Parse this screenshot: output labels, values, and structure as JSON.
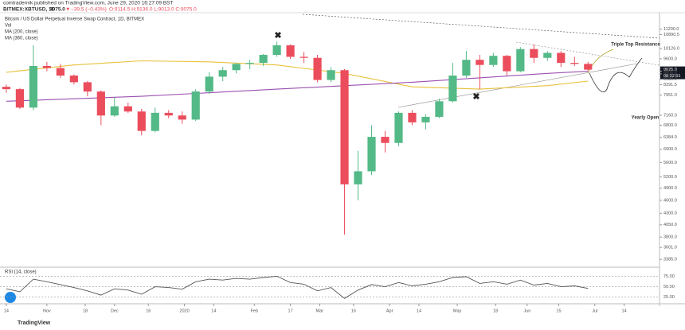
{
  "header": {
    "publisher": "cointradernik published on TradingView.com, June 29, 2020 16:27:09 BST",
    "symbol": "BITMEX:XBTUSD, 1D",
    "last": "9075.0",
    "arrow": "▼",
    "change": "−39.5 (−0.43%)",
    "ohlc": "O:9114.5 H:9136.0 L:9013.0 C:9075.0"
  },
  "legend": {
    "instrument": "Bitcoin / US Dollar Perpetual Inverse Swap Contract, 1D, BITMEX",
    "volume": "Vol"
  },
  "footer": "TradingView",
  "chart_data": {
    "type": "candlestick",
    "x": [
      0,
      6,
      12,
      18,
      24,
      30,
      36,
      42,
      48,
      54,
      60,
      66,
      72,
      78,
      84,
      90,
      96,
      102,
      108,
      114,
      120,
      126,
      132,
      138,
      144,
      150,
      156,
      162,
      168,
      174,
      180,
      186,
      192,
      198,
      204,
      210,
      216,
      222,
      228,
      234,
      240,
      246,
      252,
      258
    ],
    "open": [
      8300,
      8200,
      7450,
      9250,
      9150,
      8800,
      8500,
      8100,
      7150,
      7500,
      7300,
      6600,
      7250,
      7150,
      7000,
      8100,
      8750,
      9050,
      9350,
      9400,
      9800,
      10300,
      9700,
      9650,
      8600,
      9050,
      5000,
      5350,
      6400,
      6200,
      7250,
      6900,
      7100,
      7700,
      8800,
      9550,
      9300,
      9750,
      9000,
      10100,
      9650,
      9900,
      9400,
      9350
    ],
    "high": [
      8400,
      8250,
      10300,
      9450,
      9350,
      8850,
      8550,
      8150,
      7850,
      7650,
      7400,
      7450,
      7350,
      7300,
      8200,
      8950,
      9200,
      9400,
      9550,
      9850,
      10500,
      10350,
      9950,
      9800,
      9200,
      9100,
      5950,
      6800,
      6600,
      7300,
      7350,
      7200,
      7800,
      9400,
      10000,
      9800,
      9900,
      9800,
      10200,
      10350,
      10000,
      10000,
      9700,
      9450
    ],
    "low": [
      8050,
      7400,
      7350,
      9000,
      8700,
      8400,
      7900,
      6800,
      7100,
      7250,
      6450,
      6550,
      7050,
      6850,
      6950,
      8000,
      8550,
      8900,
      9100,
      9250,
      9700,
      9600,
      9400,
      8500,
      8500,
      3850,
      4600,
      5250,
      5900,
      6100,
      6800,
      6650,
      7050,
      7650,
      8700,
      8200,
      9200,
      8800,
      8950,
      9400,
      9500,
      9200,
      9250,
      9000
    ],
    "close": [
      8200,
      7450,
      9250,
      9150,
      8800,
      8500,
      8100,
      7150,
      7500,
      7300,
      6600,
      7250,
      7150,
      7000,
      8100,
      8750,
      9050,
      9350,
      9400,
      9800,
      10300,
      9700,
      9650,
      8600,
      9050,
      5000,
      5350,
      6400,
      6200,
      7250,
      6900,
      7100,
      7700,
      8800,
      9550,
      9300,
      9750,
      9000,
      10100,
      9650,
      9900,
      9400,
      9350,
      9075
    ],
    "up_color": "#53b987",
    "down_color": "#eb4d5c",
    "log_scale": true,
    "ylim": [
      3250,
      12200
    ],
    "yticks": [
      {
        "value": 11200,
        "label": "11200.0"
      },
      {
        "value": 10890.5,
        "label": "10890.5"
      },
      {
        "value": 10126,
        "label": "10126.0"
      },
      {
        "value": 9600,
        "label": "9600.0"
      },
      {
        "value": 9075,
        "label": "9075.0",
        "highlight": true
      },
      {
        "value": 9002.5,
        "label": "9002.5"
      },
      {
        "value": 8879.5,
        "label": "8879.5"
      },
      {
        "value": 8630,
        "label": "8630.0"
      },
      {
        "value": 8391.5,
        "label": "8391.5"
      },
      {
        "value": 7951,
        "label": "7951.0"
      },
      {
        "value": 7160,
        "label": "7160.0"
      },
      {
        "value": 6800,
        "label": "6800.0"
      },
      {
        "value": 6384,
        "label": "6384.0"
      },
      {
        "value": 6000,
        "label": "6000.0"
      },
      {
        "value": 5600,
        "label": "5600.0"
      },
      {
        "value": 5200,
        "label": "5200.0"
      },
      {
        "value": 4900,
        "label": "4900.0"
      },
      {
        "value": 4600,
        "label": "4600.0"
      },
      {
        "value": 4300,
        "label": "4300.0"
      },
      {
        "value": 4050,
        "label": "4050.0"
      },
      {
        "value": 3800,
        "label": "3800.0"
      },
      {
        "value": 3601,
        "label": "3601.0"
      },
      {
        "value": 3385,
        "label": "3385.0"
      }
    ],
    "countdown": "08:32:51",
    "xlim": [
      -2.8,
      289.7
    ],
    "xticks": [
      {
        "value": 0,
        "label": "14"
      },
      {
        "value": 18,
        "label": "Nov"
      },
      {
        "value": 35,
        "label": "18"
      },
      {
        "value": 48,
        "label": "Dec"
      },
      {
        "value": 63,
        "label": "16"
      },
      {
        "value": 79,
        "label": "2020"
      },
      {
        "value": 92,
        "label": "14"
      },
      {
        "value": 110,
        "label": "Feb"
      },
      {
        "value": 126,
        "label": "17"
      },
      {
        "value": 139,
        "label": "Mar"
      },
      {
        "value": 154,
        "label": "16"
      },
      {
        "value": 170,
        "label": "Apr"
      },
      {
        "value": 183,
        "label": "14"
      },
      {
        "value": 200,
        "label": "May"
      },
      {
        "value": 217,
        "label": "18"
      },
      {
        "value": 231,
        "label": "Jun"
      },
      {
        "value": 245,
        "label": "15"
      },
      {
        "value": 261,
        "label": "Jul"
      },
      {
        "value": 274,
        "label": "14"
      }
    ],
    "series": [
      {
        "name": "MA (200, close)",
        "color": "#e8c13a",
        "x": [
          0,
          30,
          60,
          90,
          120,
          150,
          180,
          210,
          240,
          258
        ],
        "values": [
          8950,
          9300,
          9500,
          9450,
          9300,
          8900,
          8300,
          8200,
          8350,
          8550
        ]
      },
      {
        "name": "MA (360, close)",
        "color": "#9b4fb0",
        "x": [
          0,
          60,
          120,
          180,
          240,
          258
        ],
        "values": [
          7700,
          7900,
          8200,
          8500,
          8900,
          9000
        ]
      }
    ],
    "annotations": [
      "Triple Top Resistance",
      "Yearly Open"
    ],
    "rsi": {
      "title": "RSI (14, close)",
      "color": "#555555",
      "values": [
        45,
        38,
        68,
        62,
        55,
        48,
        40,
        30,
        45,
        42,
        32,
        50,
        48,
        44,
        62,
        68,
        66,
        70,
        68,
        72,
        75,
        60,
        56,
        40,
        48,
        22,
        42,
        55,
        50,
        60,
        52,
        56,
        62,
        72,
        74,
        58,
        62,
        56,
        66,
        54,
        58,
        50,
        52,
        46
      ],
      "ylim": [
        13,
        93
      ],
      "yticks": [
        {
          "value": 75,
          "label": "75.00"
        },
        {
          "value": 50,
          "label": "50.00"
        },
        {
          "value": 25,
          "label": "25.00"
        }
      ]
    }
  }
}
